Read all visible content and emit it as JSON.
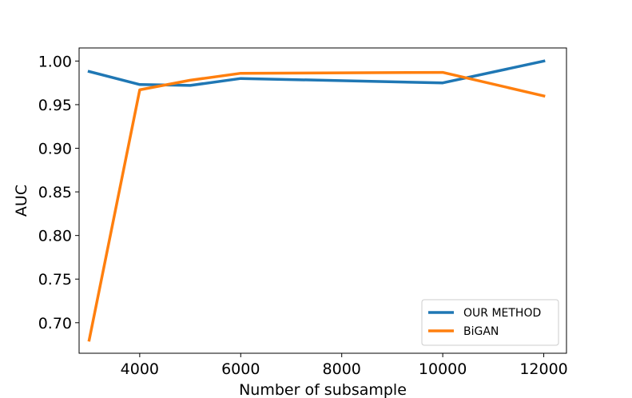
{
  "chart_data": {
    "type": "line",
    "title": "",
    "xlabel": "Number of subsample",
    "ylabel": "AUC",
    "xlim": [
      2800,
      12450
    ],
    "ylim": [
      0.665,
      1.015
    ],
    "xticks": [
      4000,
      6000,
      8000,
      10000,
      12000
    ],
    "xtick_labels": [
      "4000",
      "6000",
      "8000",
      "10000",
      "12000"
    ],
    "yticks": [
      0.7,
      0.75,
      0.8,
      0.85,
      0.9,
      0.95,
      1.0
    ],
    "ytick_labels": [
      "0.70",
      "0.75",
      "0.80",
      "0.85",
      "0.90",
      "0.95",
      "1.00"
    ],
    "grid": false,
    "legend_position": "lower-right",
    "series": [
      {
        "name": "OUR METHOD",
        "color": "#1f77b4",
        "x": [
          3000,
          4000,
          5000,
          6000,
          10000,
          12000
        ],
        "y": [
          0.988,
          0.973,
          0.972,
          0.98,
          0.975,
          1.0
        ]
      },
      {
        "name": "BiGAN",
        "color": "#ff7f0e",
        "x": [
          3000,
          4000,
          5000,
          6000,
          10000,
          12000
        ],
        "y": [
          0.68,
          0.967,
          0.978,
          0.986,
          0.987,
          0.96
        ]
      }
    ]
  }
}
